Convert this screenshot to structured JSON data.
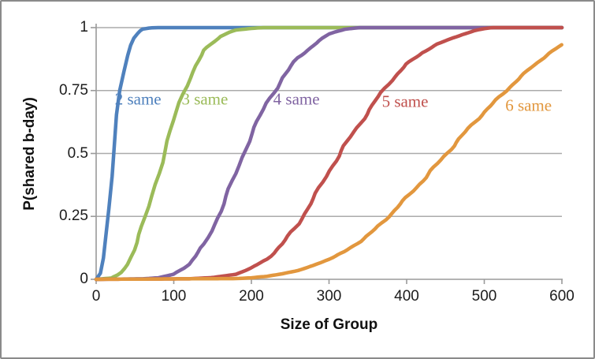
{
  "figure": {
    "background": "#ffffff",
    "border_color": "#8a8a8a"
  },
  "chart_data": {
    "type": "line",
    "title": "",
    "xlabel": "Size of Group",
    "ylabel": "P(shared b-day)",
    "xlim": [
      0,
      600
    ],
    "ylim": [
      0,
      1
    ],
    "x_ticks": [
      0,
      100,
      200,
      300,
      400,
      500,
      600
    ],
    "x_tick_labels": [
      "0",
      "100",
      "200",
      "300",
      "400",
      "500",
      "600"
    ],
    "y_ticks": [
      0,
      0.25,
      0.5,
      0.75,
      1
    ],
    "y_tick_labels": [
      "0",
      "0.25",
      "0.5",
      "0.75",
      "1"
    ],
    "grid": "horizontal-only",
    "grid_color": "#ababab",
    "axis_color": "#9a9a9a",
    "text_color": "#1c1c1c",
    "legend": "inline-colored-labels",
    "series": [
      {
        "name": "2 same",
        "color": "#4F81BD",
        "label_x": 54,
        "label_p": 0.715,
        "points": [
          [
            0,
            0
          ],
          [
            5,
            0.03
          ],
          [
            10,
            0.12
          ],
          [
            15,
            0.25
          ],
          [
            20,
            0.41
          ],
          [
            25,
            0.57
          ],
          [
            30,
            0.71
          ],
          [
            35,
            0.81
          ],
          [
            40,
            0.89
          ],
          [
            45,
            0.94
          ],
          [
            50,
            0.97
          ],
          [
            55,
            0.986
          ],
          [
            60,
            0.994
          ],
          [
            70,
            0.999
          ],
          [
            80,
            1
          ],
          [
            600,
            1
          ]
        ]
      },
      {
        "name": "3 same",
        "color": "#9BBB59",
        "label_x": 140,
        "label_p": 0.715,
        "points": [
          [
            0,
            0
          ],
          [
            20,
            0.005
          ],
          [
            30,
            0.02
          ],
          [
            40,
            0.06
          ],
          [
            50,
            0.13
          ],
          [
            60,
            0.21
          ],
          [
            70,
            0.31
          ],
          [
            80,
            0.42
          ],
          [
            90,
            0.53
          ],
          [
            100,
            0.63
          ],
          [
            110,
            0.72
          ],
          [
            120,
            0.8
          ],
          [
            130,
            0.86
          ],
          [
            140,
            0.91
          ],
          [
            150,
            0.94
          ],
          [
            160,
            0.965
          ],
          [
            170,
            0.98
          ],
          [
            180,
            0.99
          ],
          [
            200,
            0.997
          ],
          [
            215,
            1
          ],
          [
            600,
            1
          ]
        ]
      },
      {
        "name": "4 same",
        "color": "#8064A2",
        "label_x": 258,
        "label_p": 0.715,
        "points": [
          [
            0,
            0
          ],
          [
            60,
            0.002
          ],
          [
            80,
            0.006
          ],
          [
            100,
            0.02
          ],
          [
            120,
            0.06
          ],
          [
            140,
            0.14
          ],
          [
            160,
            0.27
          ],
          [
            180,
            0.42
          ],
          [
            190,
            0.5
          ],
          [
            200,
            0.58
          ],
          [
            220,
            0.7
          ],
          [
            240,
            0.8
          ],
          [
            260,
            0.88
          ],
          [
            280,
            0.93
          ],
          [
            300,
            0.975
          ],
          [
            310,
            0.985
          ],
          [
            320,
            0.993
          ],
          [
            330,
            0.997
          ],
          [
            340,
            1
          ],
          [
            600,
            1
          ]
        ]
      },
      {
        "name": "5 same",
        "color": "#C0504D",
        "label_x": 398,
        "label_p": 0.705,
        "points": [
          [
            0,
            0
          ],
          [
            120,
            0.002
          ],
          [
            150,
            0.007
          ],
          [
            180,
            0.02
          ],
          [
            200,
            0.045
          ],
          [
            220,
            0.08
          ],
          [
            240,
            0.14
          ],
          [
            260,
            0.22
          ],
          [
            280,
            0.32
          ],
          [
            300,
            0.43
          ],
          [
            314,
            0.5
          ],
          [
            320,
            0.53
          ],
          [
            340,
            0.62
          ],
          [
            360,
            0.71
          ],
          [
            380,
            0.79
          ],
          [
            400,
            0.855
          ],
          [
            420,
            0.9
          ],
          [
            440,
            0.935
          ],
          [
            460,
            0.96
          ],
          [
            480,
            0.98
          ],
          [
            490,
            0.99
          ],
          [
            500,
            0.996
          ],
          [
            510,
            1
          ],
          [
            600,
            1
          ]
        ]
      },
      {
        "name": "6 same",
        "color": "#E2973E",
        "label_x": 557,
        "label_p": 0.69,
        "points": [
          [
            0,
            0
          ],
          [
            180,
            0.003
          ],
          [
            200,
            0.006
          ],
          [
            220,
            0.012
          ],
          [
            240,
            0.022
          ],
          [
            260,
            0.035
          ],
          [
            280,
            0.055
          ],
          [
            300,
            0.08
          ],
          [
            320,
            0.11
          ],
          [
            340,
            0.15
          ],
          [
            360,
            0.2
          ],
          [
            380,
            0.26
          ],
          [
            400,
            0.325
          ],
          [
            420,
            0.39
          ],
          [
            440,
            0.46
          ],
          [
            460,
            0.53
          ],
          [
            480,
            0.6
          ],
          [
            500,
            0.665
          ],
          [
            520,
            0.725
          ],
          [
            540,
            0.785
          ],
          [
            560,
            0.84
          ],
          [
            580,
            0.89
          ],
          [
            600,
            0.932
          ]
        ]
      }
    ]
  }
}
